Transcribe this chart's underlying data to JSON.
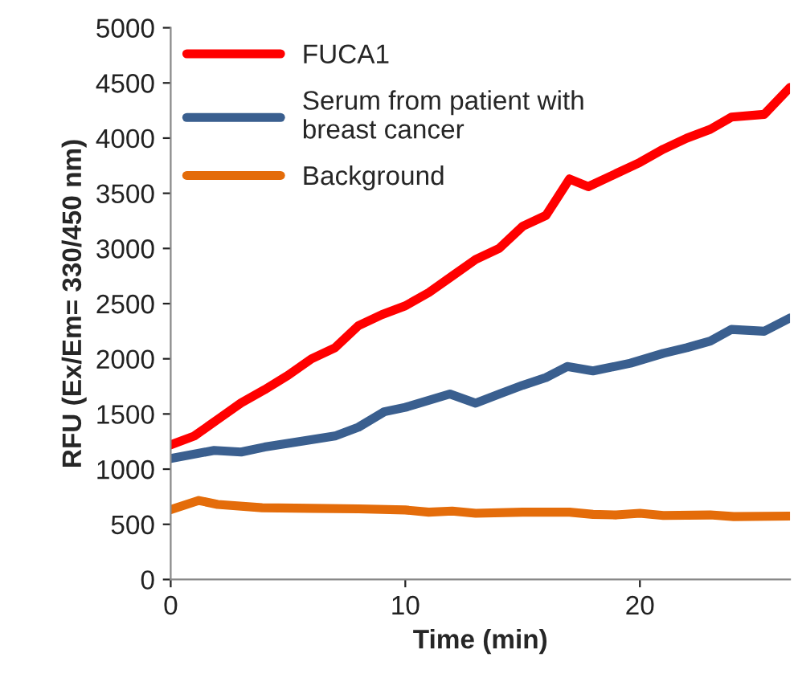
{
  "chart_data": {
    "type": "line",
    "xlabel": "Time (min)",
    "ylabel": "RFU (Ex/Em= 330/450 nm)",
    "xlim": [
      0,
      26.4
    ],
    "xticks": [
      0,
      10,
      20
    ],
    "ylim": [
      0,
      5000
    ],
    "yticks": [
      0,
      500,
      1000,
      1500,
      2000,
      2500,
      3000,
      3500,
      4000,
      4500,
      5000
    ],
    "grid": false,
    "legend": "top left",
    "marker": "none",
    "line_style": "solid",
    "series": [
      {
        "name": "FUCA1",
        "color": "#ff0000",
        "x": [
          0,
          1,
          2,
          3,
          4,
          5,
          6,
          7,
          8,
          9,
          10,
          11,
          12,
          13,
          14,
          15,
          16,
          17,
          17.8,
          19,
          20,
          21,
          22,
          23,
          23.9,
          25.3,
          26.4
        ],
        "values": [
          1220,
          1300,
          1450,
          1600,
          1720,
          1850,
          2000,
          2100,
          2300,
          2400,
          2480,
          2600,
          2750,
          2900,
          3000,
          3200,
          3300,
          3630,
          3560,
          3680,
          3780,
          3900,
          4000,
          4080,
          4190,
          4215,
          4460
        ]
      },
      {
        "name": "Serum from patient with\nbreast cancer",
        "color": "#3a5f8f",
        "x": [
          0,
          1.85,
          3,
          4,
          5.7,
          7,
          8,
          9.1,
          10,
          11.9,
          13,
          14,
          15,
          16,
          16.9,
          18,
          19.6,
          21,
          22,
          23,
          23.9,
          25.3,
          26.4
        ],
        "values": [
          1096,
          1170,
          1155,
          1200,
          1257,
          1300,
          1380,
          1520,
          1560,
          1681,
          1598,
          1680,
          1760,
          1830,
          1930,
          1890,
          1960,
          2050,
          2100,
          2160,
          2266,
          2250,
          2370
        ]
      },
      {
        "name": "Background",
        "color": "#e46c0a",
        "x": [
          0,
          1.2,
          2,
          3.9,
          6,
          8,
          10,
          11,
          12,
          13,
          15,
          17,
          18,
          19,
          20,
          21,
          23,
          24,
          26.4
        ],
        "values": [
          633,
          716,
          680,
          650,
          645,
          640,
          630,
          610,
          620,
          600,
          610,
          610,
          590,
          585,
          600,
          580,
          585,
          570,
          575
        ]
      }
    ]
  }
}
